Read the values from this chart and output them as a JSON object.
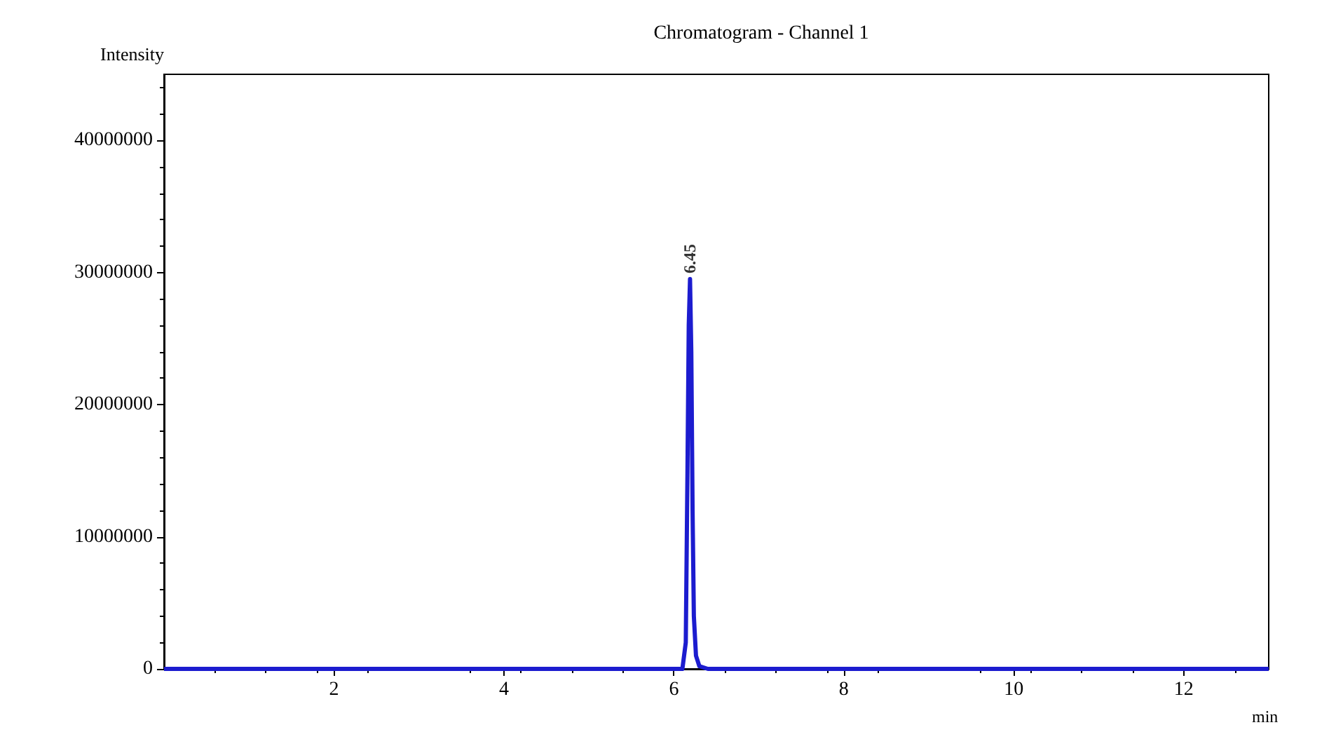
{
  "chart_data": {
    "type": "line",
    "title": "Chromatogram - Channel 1",
    "xlabel": "min",
    "ylabel": "Intensity",
    "x": [
      0,
      6.1,
      6.14,
      6.16,
      6.175,
      6.19,
      6.205,
      6.22,
      6.235,
      6.26,
      6.3,
      6.4,
      13
    ],
    "series": [
      {
        "color": "#1c1ccf",
        "values": [
          0,
          0,
          2000000,
          15000000,
          26000000,
          29500000,
          24000000,
          12000000,
          4000000,
          1000000,
          200000,
          0,
          0
        ]
      }
    ],
    "xlim": [
      0,
      13
    ],
    "xticks": [
      2,
      4,
      6,
      8,
      10,
      12
    ],
    "ylim": [
      0,
      45000000
    ],
    "yticks": [
      0,
      10000000,
      20000000,
      30000000,
      40000000
    ],
    "annotations": [
      {
        "text": "6.45",
        "x": 6.19,
        "y": 29500000
      }
    ],
    "grid": false,
    "marker": "none",
    "line_style": "solid"
  }
}
